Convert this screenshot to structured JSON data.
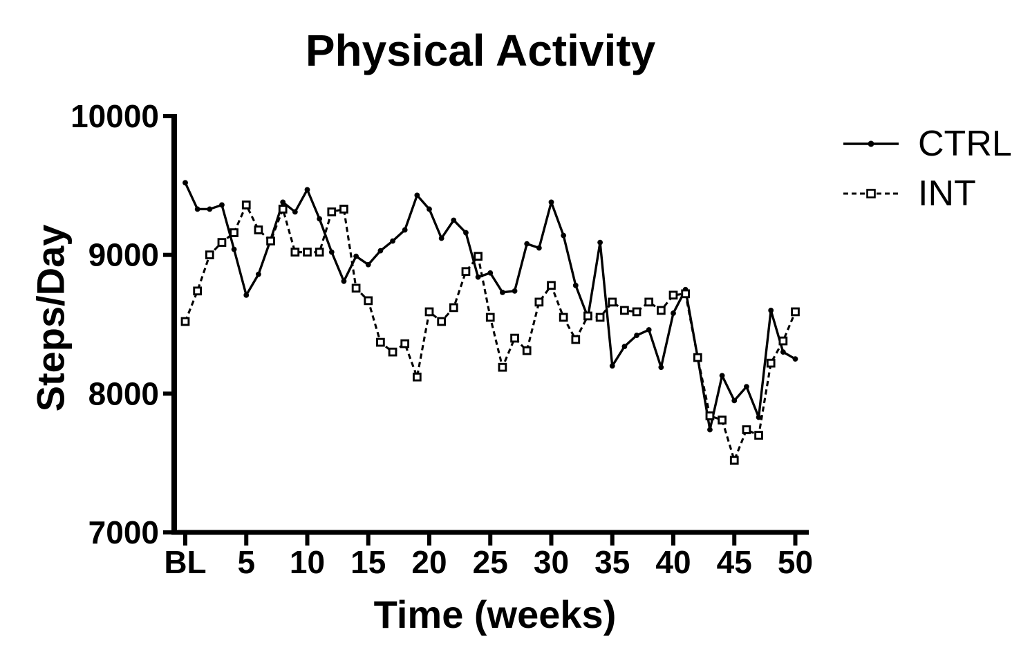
{
  "chart_data": {
    "type": "line",
    "title": "Physical Activity",
    "xlabel": "Time (weeks)",
    "ylabel": "Steps/Day",
    "ylim": [
      7000,
      10000
    ],
    "y_ticks": [
      7000,
      8000,
      9000,
      10000
    ],
    "y_tick_labels": [
      "7000",
      "8000",
      "9000",
      "10000"
    ],
    "x_tick_weeks": [
      0,
      5,
      10,
      15,
      20,
      25,
      30,
      35,
      40,
      45,
      50
    ],
    "x_tick_labels": [
      "BL",
      "5",
      "10",
      "15",
      "20",
      "25",
      "30",
      "35",
      "40",
      "45",
      "50"
    ],
    "x": [
      "BL",
      1,
      2,
      3,
      4,
      5,
      6,
      7,
      8,
      9,
      10,
      11,
      12,
      13,
      14,
      15,
      16,
      17,
      18,
      19,
      20,
      21,
      22,
      23,
      24,
      25,
      26,
      27,
      28,
      29,
      30,
      31,
      32,
      33,
      34,
      35,
      36,
      37,
      38,
      39,
      40,
      41,
      42,
      43,
      44,
      45,
      46,
      47,
      48,
      49,
      50
    ],
    "grid": false,
    "legend_position": "right",
    "line_color": "#000000",
    "background_color": "#ffffff",
    "series": [
      {
        "name": "CTRL",
        "line_style": "solid",
        "marker": "filled-circle",
        "values": [
          9520,
          9330,
          9330,
          9360,
          9040,
          8710,
          8860,
          9110,
          9380,
          9310,
          9470,
          9260,
          9020,
          8810,
          8990,
          8930,
          9030,
          9100,
          9180,
          9430,
          9330,
          9120,
          9250,
          9160,
          8840,
          8870,
          8730,
          8740,
          9080,
          9050,
          9380,
          9140,
          8780,
          8550,
          9090,
          8200,
          8340,
          8420,
          8460,
          8190,
          8580,
          8750,
          8260,
          7740,
          8130,
          7950,
          8050,
          7830,
          8600,
          8300,
          8250
        ]
      },
      {
        "name": "INT",
        "line_style": "dashed",
        "marker": "open-square",
        "values": [
          8520,
          8740,
          9000,
          9090,
          9160,
          9360,
          9180,
          9100,
          9330,
          9020,
          9020,
          9020,
          9310,
          9330,
          8760,
          8670,
          8370,
          8300,
          8360,
          8120,
          8590,
          8520,
          8620,
          8880,
          8990,
          8550,
          8190,
          8400,
          8310,
          8660,
          8780,
          8550,
          8390,
          8560,
          8550,
          8660,
          8600,
          8590,
          8660,
          8600,
          8710,
          8720,
          8260,
          7840,
          7810,
          7520,
          7740,
          7700,
          8220,
          8380,
          8590
        ]
      }
    ]
  }
}
